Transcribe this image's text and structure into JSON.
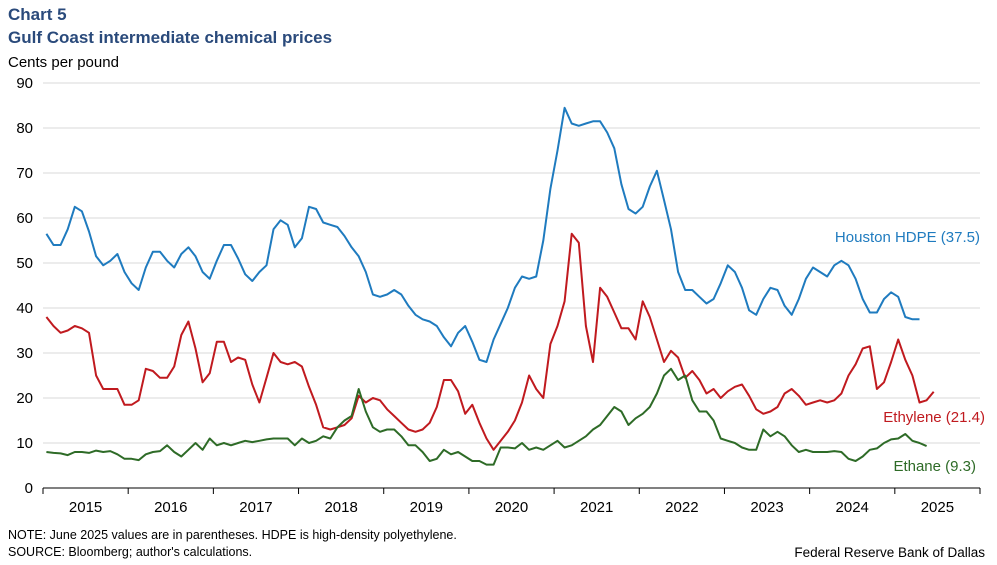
{
  "header": {
    "chart_number": "Chart 5",
    "title": "Gulf Coast intermediate chemical prices",
    "unit": "Cents per pound"
  },
  "footer": {
    "note": "NOTE: June 2025 values are in parentheses. HDPE is high-density polyethylene.",
    "source": "SOURCE: Bloomberg; author's calculations.",
    "credit": "Federal Reserve Bank of Dallas"
  },
  "chart_data": {
    "type": "line",
    "title": "Gulf Coast intermediate chemical prices",
    "ylabel": "Cents per pound",
    "xlabel": "",
    "ylim": [
      0,
      90
    ],
    "yticks": [
      0,
      10,
      20,
      30,
      40,
      50,
      60,
      70,
      80,
      90
    ],
    "xlim": [
      2014.5,
      2025.5
    ],
    "xticks": [
      {
        "label": "2015",
        "x": 2015
      },
      {
        "label": "2016",
        "x": 2016
      },
      {
        "label": "2017",
        "x": 2017
      },
      {
        "label": "2018",
        "x": 2018
      },
      {
        "label": "2019",
        "x": 2019
      },
      {
        "label": "2020",
        "x": 2020
      },
      {
        "label": "2021",
        "x": 2021
      },
      {
        "label": "2022",
        "x": 2022
      },
      {
        "label": "2023",
        "x": 2023
      },
      {
        "label": "2024",
        "x": 2024
      },
      {
        "label": "2025",
        "x": 2025
      }
    ],
    "x_start": 2014.54,
    "x_step": 0.08333,
    "series": [
      {
        "name": "Houston HDPE",
        "label": "Houston HDPE (37.5)",
        "color": "#1f7bbf",
        "values": [
          56.5,
          54,
          54,
          57.5,
          62.5,
          61.5,
          57,
          51.5,
          49.5,
          50.5,
          52,
          48,
          45.5,
          44,
          49,
          52.5,
          52.5,
          50.5,
          49,
          52,
          53.5,
          51.5,
          48,
          46.5,
          50.5,
          54,
          54,
          51,
          47.5,
          46,
          48,
          49.5,
          57.5,
          59.5,
          58.5,
          53.5,
          55.5,
          62.5,
          62,
          59,
          58.5,
          58,
          56,
          53.5,
          51.5,
          48,
          43,
          42.5,
          43,
          44,
          43,
          40.5,
          38.5,
          37.5,
          37,
          36,
          33.5,
          31.5,
          34.5,
          36,
          32.5,
          28.5,
          28,
          33,
          36.5,
          40,
          44.5,
          47,
          46.5,
          47,
          55,
          66.5,
          75,
          84.5,
          81,
          80.5,
          81,
          81.5,
          81.5,
          79,
          75.5,
          67.5,
          62,
          61,
          62.5,
          67,
          70.5,
          64,
          57.5,
          48,
          44,
          44,
          42.5,
          41,
          42,
          45.5,
          49.5,
          48,
          44.5,
          39.5,
          38.5,
          42,
          44.5,
          44,
          40.5,
          38.5,
          42,
          46.5,
          49,
          48,
          47,
          49.5,
          50.5,
          49.5,
          46.5,
          42,
          39,
          39,
          42,
          43.5,
          42.5,
          38,
          37.5,
          37.5
        ]
      },
      {
        "name": "Ethylene",
        "label": "Ethylene (21.4)",
        "color": "#c01a1f",
        "values": [
          38,
          36,
          34.5,
          35,
          36,
          35.5,
          34.5,
          25,
          22,
          22,
          22,
          18.5,
          18.5,
          19.5,
          26.5,
          26,
          24.5,
          24.5,
          27,
          34,
          37,
          31,
          23.5,
          25.5,
          32.5,
          32.5,
          28,
          29,
          28.5,
          23,
          19,
          24.5,
          30,
          28,
          27.5,
          28,
          27,
          22.5,
          18.5,
          13.5,
          13,
          13.5,
          14,
          15.5,
          20.5,
          19,
          20,
          19.5,
          17.5,
          16,
          14.5,
          13,
          12.5,
          13,
          14.5,
          18,
          24,
          24,
          21.5,
          16.5,
          18.5,
          14.5,
          11,
          8.5,
          10.5,
          12.5,
          15,
          19,
          25,
          22,
          20,
          32,
          36,
          41.5,
          56.5,
          54.5,
          36,
          28,
          44.5,
          42.5,
          39,
          35.5,
          35.5,
          33,
          41.5,
          38,
          33,
          28,
          30.5,
          29,
          24.5,
          26,
          24,
          21,
          22,
          20,
          21.5,
          22.5,
          23,
          20.5,
          17.5,
          16.5,
          17,
          18,
          21,
          22,
          20.5,
          18.5,
          19,
          19.5,
          19,
          19.5,
          21,
          25,
          27.5,
          31,
          31.5,
          22,
          23.5,
          28,
          33,
          28.5,
          25,
          19,
          19.5,
          21.4
        ]
      },
      {
        "name": "Ethane",
        "label": "Ethane (9.3)",
        "color": "#2e6b27",
        "values": [
          8,
          7.8,
          7.7,
          7.3,
          8,
          8,
          7.8,
          8.3,
          8,
          8.2,
          7.5,
          6.5,
          6.5,
          6.2,
          7.5,
          8,
          8.2,
          9.5,
          8,
          7,
          8.5,
          10,
          8.5,
          11,
          9.5,
          10,
          9.5,
          10,
          10.5,
          10.2,
          10.5,
          10.8,
          11,
          11,
          11,
          9.5,
          11,
          10,
          10.5,
          11.5,
          11,
          13.5,
          15,
          16,
          22,
          17,
          13.5,
          12.5,
          13,
          13,
          11.5,
          9.5,
          9.5,
          8,
          6,
          6.5,
          8.5,
          7.5,
          8,
          7,
          6,
          6,
          5.2,
          5.2,
          9,
          9,
          8.8,
          10,
          8.5,
          9,
          8.5,
          9.5,
          10.5,
          9,
          9.5,
          10.5,
          11.5,
          13,
          14,
          16,
          18,
          17,
          14,
          15.5,
          16.5,
          18,
          21,
          25,
          26.5,
          24,
          25,
          19.5,
          17,
          17,
          15,
          11,
          10.5,
          10,
          9,
          8.5,
          8.5,
          13,
          11.5,
          12.5,
          11.5,
          9.5,
          8,
          8.5,
          8,
          8,
          8,
          8.2,
          8,
          6.5,
          6,
          7,
          8.5,
          8.8,
          10,
          10.8,
          11,
          12,
          10.5,
          10,
          9.3
        ]
      }
    ]
  }
}
